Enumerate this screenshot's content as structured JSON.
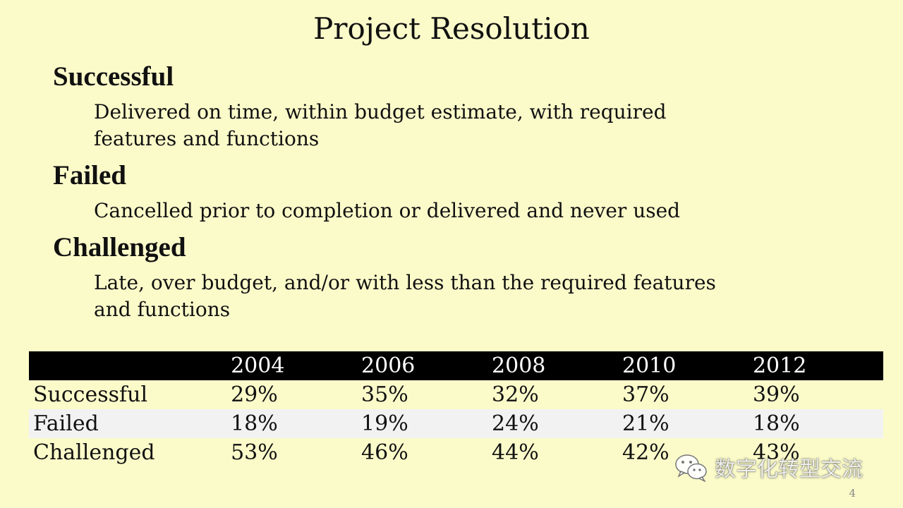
{
  "slide": {
    "title": "Project Resolution",
    "page_number": "4"
  },
  "definitions": [
    {
      "term": "Successful",
      "description": [
        "Delivered on time, within budget estimate, with required",
        "features and functions"
      ]
    },
    {
      "term": "Failed",
      "description": [
        "Cancelled prior to completion or delivered and never used"
      ]
    },
    {
      "term": "Challenged",
      "description": [
        "Late, over budget, and/or with less than the required features",
        "and functions"
      ]
    }
  ],
  "table": {
    "header": [
      "",
      "2004",
      "2006",
      "2008",
      "2010",
      "2012"
    ],
    "rows": [
      [
        "Successful",
        "29%",
        "35%",
        "32%",
        "37%",
        "39%"
      ],
      [
        "Failed",
        "18%",
        "19%",
        "24%",
        "21%",
        "18%"
      ],
      [
        "Challenged",
        "53%",
        "46%",
        "44%",
        "42%",
        "43%"
      ]
    ]
  },
  "watermark": {
    "text": "数字化转型交流",
    "icon": "wechat-icon"
  },
  "colors": {
    "background": "#fbfbca",
    "header_row": "#000000",
    "striped_row": "#f2f2f2"
  }
}
